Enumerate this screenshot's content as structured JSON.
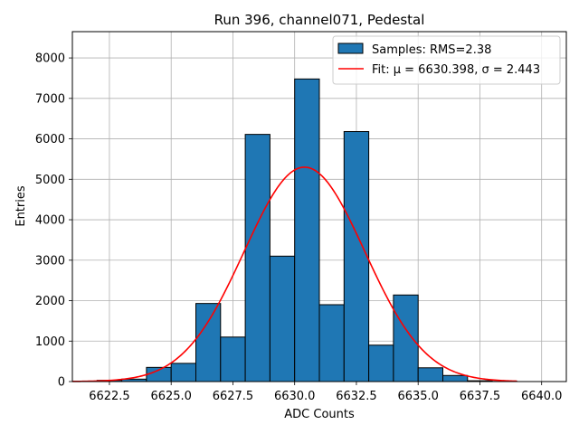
{
  "chart_data": {
    "type": "bar",
    "title": "Run 396, channel071, Pedestal",
    "xlabel": "ADC Counts",
    "ylabel": "Entries",
    "xlim": [
      6621,
      6641
    ],
    "ylim": [
      0,
      8650
    ],
    "xticks": [
      6622.5,
      6625.0,
      6627.5,
      6630.0,
      6632.5,
      6635.0,
      6637.5,
      6640.0
    ],
    "xtick_labels": [
      "6622.5",
      "6625.0",
      "6627.5",
      "6630.0",
      "6632.5",
      "6635.0",
      "6637.5",
      "6640.0"
    ],
    "yticks": [
      0,
      1000,
      2000,
      3000,
      4000,
      5000,
      6000,
      7000,
      8000
    ],
    "ytick_labels": [
      "0",
      "1000",
      "2000",
      "3000",
      "4000",
      "5000",
      "6000",
      "7000",
      "8000"
    ],
    "grid": true,
    "legend_position": "top-right",
    "series": [
      {
        "name": "Samples: RMS=2.38",
        "kind": "histogram",
        "color": "#1f77b4",
        "edgecolor": "#000000",
        "bin_edges": [
          6622,
          6623,
          6624,
          6625,
          6626,
          6627,
          6628,
          6629,
          6630,
          6631,
          6632,
          6633,
          6634,
          6635,
          6636,
          6637,
          6638,
          6639,
          6640
        ],
        "values": [
          30,
          60,
          350,
          450,
          1930,
          1100,
          6110,
          3100,
          7480,
          1900,
          6180,
          900,
          2140,
          340,
          150,
          20,
          5,
          0
        ]
      },
      {
        "name": "Fit: μ = 6630.398, σ = 2.443",
        "kind": "gaussian-fit",
        "color": "#ff0000",
        "mu": 6630.398,
        "sigma": 2.443,
        "amplitude": 5300,
        "x_range": [
          6621,
          6639
        ]
      }
    ]
  }
}
